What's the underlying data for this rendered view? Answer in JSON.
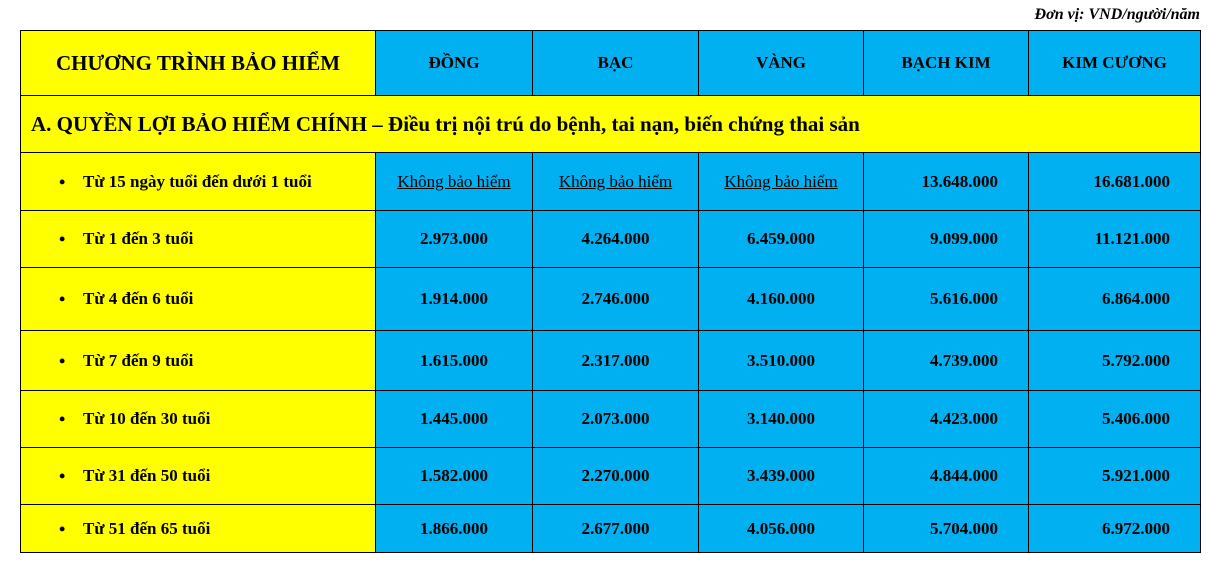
{
  "unit_note": "Đơn vị: VND/người/năm",
  "header": {
    "title": "CHƯƠNG TRÌNH BẢO HIỂM",
    "plans": [
      "ĐỒNG",
      "BẠC",
      "VÀNG",
      "BẠCH KIM",
      "KIM CƯƠNG"
    ]
  },
  "section": "A.  QUYỀN LỢI BẢO HIỂM CHÍNH – Điều trị nội trú do bệnh, tai nạn, biến chứng thai sản",
  "rows": [
    {
      "label": "Từ 15 ngày tuổi đến dưới 1 tuổi",
      "values": [
        "Không bảo hiểm",
        "Không bảo hiểm",
        "Không bảo hiểm",
        "13.648.000",
        "16.681.000"
      ]
    },
    {
      "label": "Từ 1 đến 3 tuổi",
      "values": [
        "2.973.000",
        "4.264.000",
        "6.459.000",
        "9.099.000",
        "11.121.000"
      ]
    },
    {
      "label": "Từ 4 đến 6 tuổi",
      "values": [
        "1.914.000",
        "2.746.000",
        "4.160.000",
        "5.616.000",
        "6.864.000"
      ]
    },
    {
      "label": "Từ 7 đến 9 tuổi",
      "values": [
        "1.615.000",
        "2.317.000",
        "3.510.000",
        "4.739.000",
        "5.792.000"
      ]
    },
    {
      "label": "Từ 10 đến 30 tuổi",
      "values": [
        "1.445.000",
        "2.073.000",
        "3.140.000",
        "4.423.000",
        "5.406.000"
      ]
    },
    {
      "label": "Từ 31 đến 50 tuổi",
      "values": [
        "1.582.000",
        "2.270.000",
        "3.439.000",
        "4.844.000",
        "5.921.000"
      ]
    },
    {
      "label": "Từ 51 đến 65 tuổi",
      "values": [
        "1.866.000",
        "2.677.000",
        "4.056.000",
        "5.704.000",
        "6.972.000"
      ]
    }
  ],
  "colors": {
    "yellow": "#ffff00",
    "blue": "#00b0f0"
  }
}
